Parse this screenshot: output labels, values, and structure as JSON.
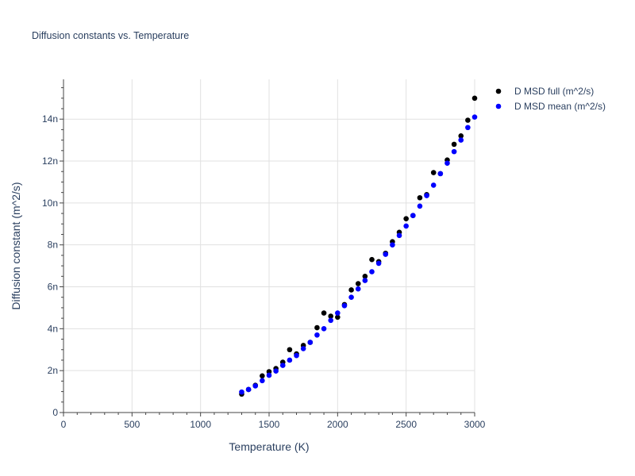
{
  "chart_data": {
    "type": "scatter",
    "title": "Diffusion constants vs. Temperature",
    "xlabel": "Temperature (K)",
    "ylabel": "Diffusion constant (m^2/s)",
    "xlim": [
      0,
      3000
    ],
    "ylim": [
      0,
      15.9
    ],
    "y_unit_suffix": "n",
    "x_ticks": [
      0,
      500,
      1000,
      1500,
      2000,
      2500,
      3000
    ],
    "y_ticks": [
      0,
      2,
      4,
      6,
      8,
      10,
      12,
      14
    ],
    "y_tick_labels": [
      "0",
      "2n",
      "4n",
      "6n",
      "8n",
      "10n",
      "12n",
      "14n"
    ],
    "grid": true,
    "legend_position": "top-right",
    "series": [
      {
        "name": "D MSD full (m^2/s)",
        "color": "#000000",
        "x": [
          1300,
          1350,
          1400,
          1450,
          1500,
          1550,
          1600,
          1650,
          1700,
          1750,
          1800,
          1850,
          1900,
          1950,
          2000,
          2050,
          2100,
          2150,
          2200,
          2250,
          2300,
          2350,
          2400,
          2450,
          2500,
          2550,
          2600,
          2650,
          2700,
          2750,
          2800,
          2850,
          2900,
          2950,
          3000
        ],
        "y": [
          0.88,
          1.1,
          1.3,
          1.75,
          1.95,
          2.1,
          2.4,
          3.0,
          2.8,
          3.2,
          3.35,
          4.05,
          4.75,
          4.6,
          4.55,
          5.15,
          5.85,
          6.15,
          6.5,
          7.3,
          7.2,
          7.6,
          8.15,
          8.6,
          9.25,
          9.4,
          10.25,
          10.4,
          11.45,
          11.4,
          12.05,
          12.8,
          13.2,
          13.95,
          15.0
        ]
      },
      {
        "name": "D MSD mean (m^2/s)",
        "color": "#0000ff",
        "x": [
          1300,
          1350,
          1400,
          1450,
          1500,
          1550,
          1600,
          1650,
          1700,
          1750,
          1800,
          1850,
          1900,
          1950,
          2000,
          2050,
          2100,
          2150,
          2200,
          2250,
          2300,
          2350,
          2400,
          2450,
          2500,
          2550,
          2600,
          2650,
          2700,
          2750,
          2800,
          2850,
          2900,
          2950,
          3000
        ],
        "y": [
          0.98,
          1.1,
          1.27,
          1.52,
          1.78,
          1.98,
          2.25,
          2.5,
          2.72,
          3.05,
          3.35,
          3.7,
          4.0,
          4.4,
          4.75,
          5.1,
          5.5,
          5.9,
          6.3,
          6.72,
          7.12,
          7.55,
          8.0,
          8.45,
          8.9,
          9.4,
          9.85,
          10.35,
          10.85,
          11.4,
          11.9,
          12.45,
          13.0,
          13.6,
          14.1
        ]
      }
    ]
  }
}
